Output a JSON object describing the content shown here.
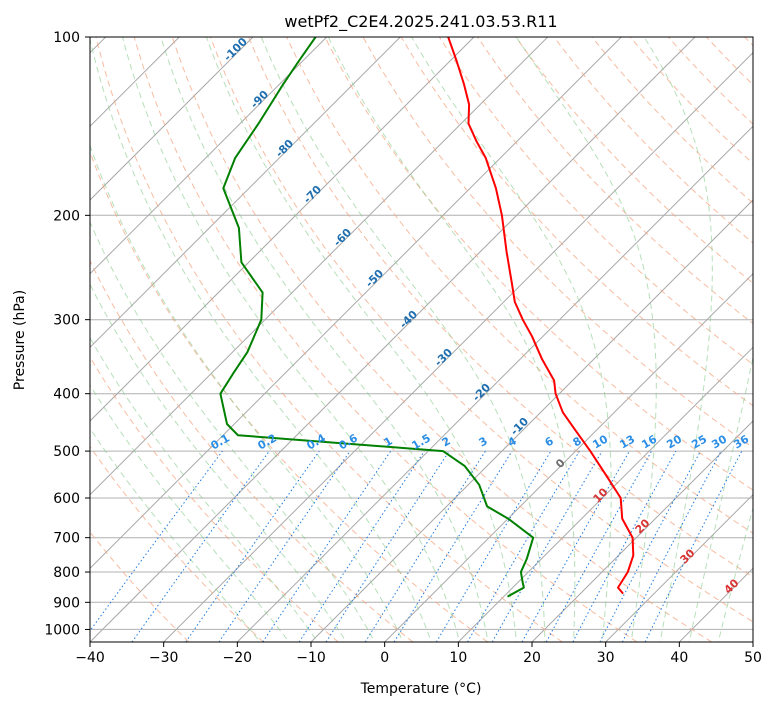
{
  "chart_data": {
    "type": "line",
    "title": "wetPf2_C2E4.2025.241.03.53.R11",
    "xlabel": "Temperature (°C)",
    "ylabel": "Pressure (hPa)",
    "xlim": [
      -40,
      50
    ],
    "ylim_hPa": [
      1050,
      100
    ],
    "x_ticks": [
      -40,
      -30,
      -20,
      -10,
      0,
      10,
      20,
      30,
      40,
      50
    ],
    "y_ticks": [
      100,
      200,
      300,
      400,
      500,
      600,
      700,
      800,
      900,
      1000
    ],
    "series": [
      {
        "name": "temperature",
        "color": "#ff0000",
        "points": [
          {
            "p": 870,
            "t": 25.8
          },
          {
            "p": 850,
            "t": 24.3
          },
          {
            "p": 800,
            "t": 23.5
          },
          {
            "p": 750,
            "t": 22.0
          },
          {
            "p": 700,
            "t": 19.5
          },
          {
            "p": 650,
            "t": 15.5
          },
          {
            "p": 600,
            "t": 12.5
          },
          {
            "p": 550,
            "t": 7.5
          },
          {
            "p": 500,
            "t": 2.0
          },
          {
            "p": 460,
            "t": -3.0
          },
          {
            "p": 430,
            "t": -7.0
          },
          {
            "p": 400,
            "t": -10.5
          },
          {
            "p": 380,
            "t": -12.5
          },
          {
            "p": 350,
            "t": -17.0
          },
          {
            "p": 320,
            "t": -21.5
          },
          {
            "p": 300,
            "t": -25.0
          },
          {
            "p": 280,
            "t": -28.5
          },
          {
            "p": 260,
            "t": -31.5
          },
          {
            "p": 230,
            "t": -36.5
          },
          {
            "p": 200,
            "t": -42.0
          },
          {
            "p": 180,
            "t": -46.5
          },
          {
            "p": 160,
            "t": -52.0
          },
          {
            "p": 150,
            "t": -55.5
          },
          {
            "p": 140,
            "t": -59.0
          },
          {
            "p": 130,
            "t": -61.5
          },
          {
            "p": 120,
            "t": -65.0
          },
          {
            "p": 110,
            "t": -69.0
          },
          {
            "p": 100,
            "t": -73.5
          }
        ]
      },
      {
        "name": "dewpoint",
        "color": "#008000",
        "points": [
          {
            "p": 880,
            "t": 10.5
          },
          {
            "p": 850,
            "t": 11.5
          },
          {
            "p": 830,
            "t": 10.5
          },
          {
            "p": 800,
            "t": 9.0
          },
          {
            "p": 760,
            "t": 8.0
          },
          {
            "p": 700,
            "t": 6.0
          },
          {
            "p": 650,
            "t": 0.0
          },
          {
            "p": 620,
            "t": -4.5
          },
          {
            "p": 570,
            "t": -8.5
          },
          {
            "p": 530,
            "t": -13.0
          },
          {
            "p": 500,
            "t": -18.0
          },
          {
            "p": 470,
            "t": -48.0
          },
          {
            "p": 450,
            "t": -51.0
          },
          {
            "p": 400,
            "t": -56.0
          },
          {
            "p": 370,
            "t": -57.0
          },
          {
            "p": 340,
            "t": -58.0
          },
          {
            "p": 300,
            "t": -60.5
          },
          {
            "p": 270,
            "t": -64.0
          },
          {
            "p": 240,
            "t": -71.0
          },
          {
            "p": 210,
            "t": -76.0
          },
          {
            "p": 180,
            "t": -83.5
          },
          {
            "p": 160,
            "t": -86.0
          },
          {
            "p": 140,
            "t": -87.5
          },
          {
            "p": 120,
            "t": -89.5
          },
          {
            "p": 110,
            "t": -90.5
          },
          {
            "p": 100,
            "t": -91.5
          }
        ]
      }
    ],
    "isotherm_labels": [
      "-100",
      "-90",
      "-80",
      "-70",
      "-60",
      "-50",
      "-40",
      "-30",
      "-20",
      "-10"
    ],
    "mixing_ratio_labels": [
      "0.1",
      "0.2",
      "0.4",
      "0.6",
      "1",
      "1.5",
      "2",
      "3",
      "4",
      "6",
      "8",
      "10",
      "13",
      "16",
      "20",
      "25",
      "30",
      "36"
    ],
    "moist_adiabat_labels": [
      "0",
      "10",
      "20",
      "30",
      "40"
    ],
    "reference_lines": {
      "isotherms": "gray",
      "dry_adiabats": "orange dashed",
      "moist_adiabats": "green dashed",
      "mixing_ratio": "blue dotted"
    },
    "grid": true
  }
}
